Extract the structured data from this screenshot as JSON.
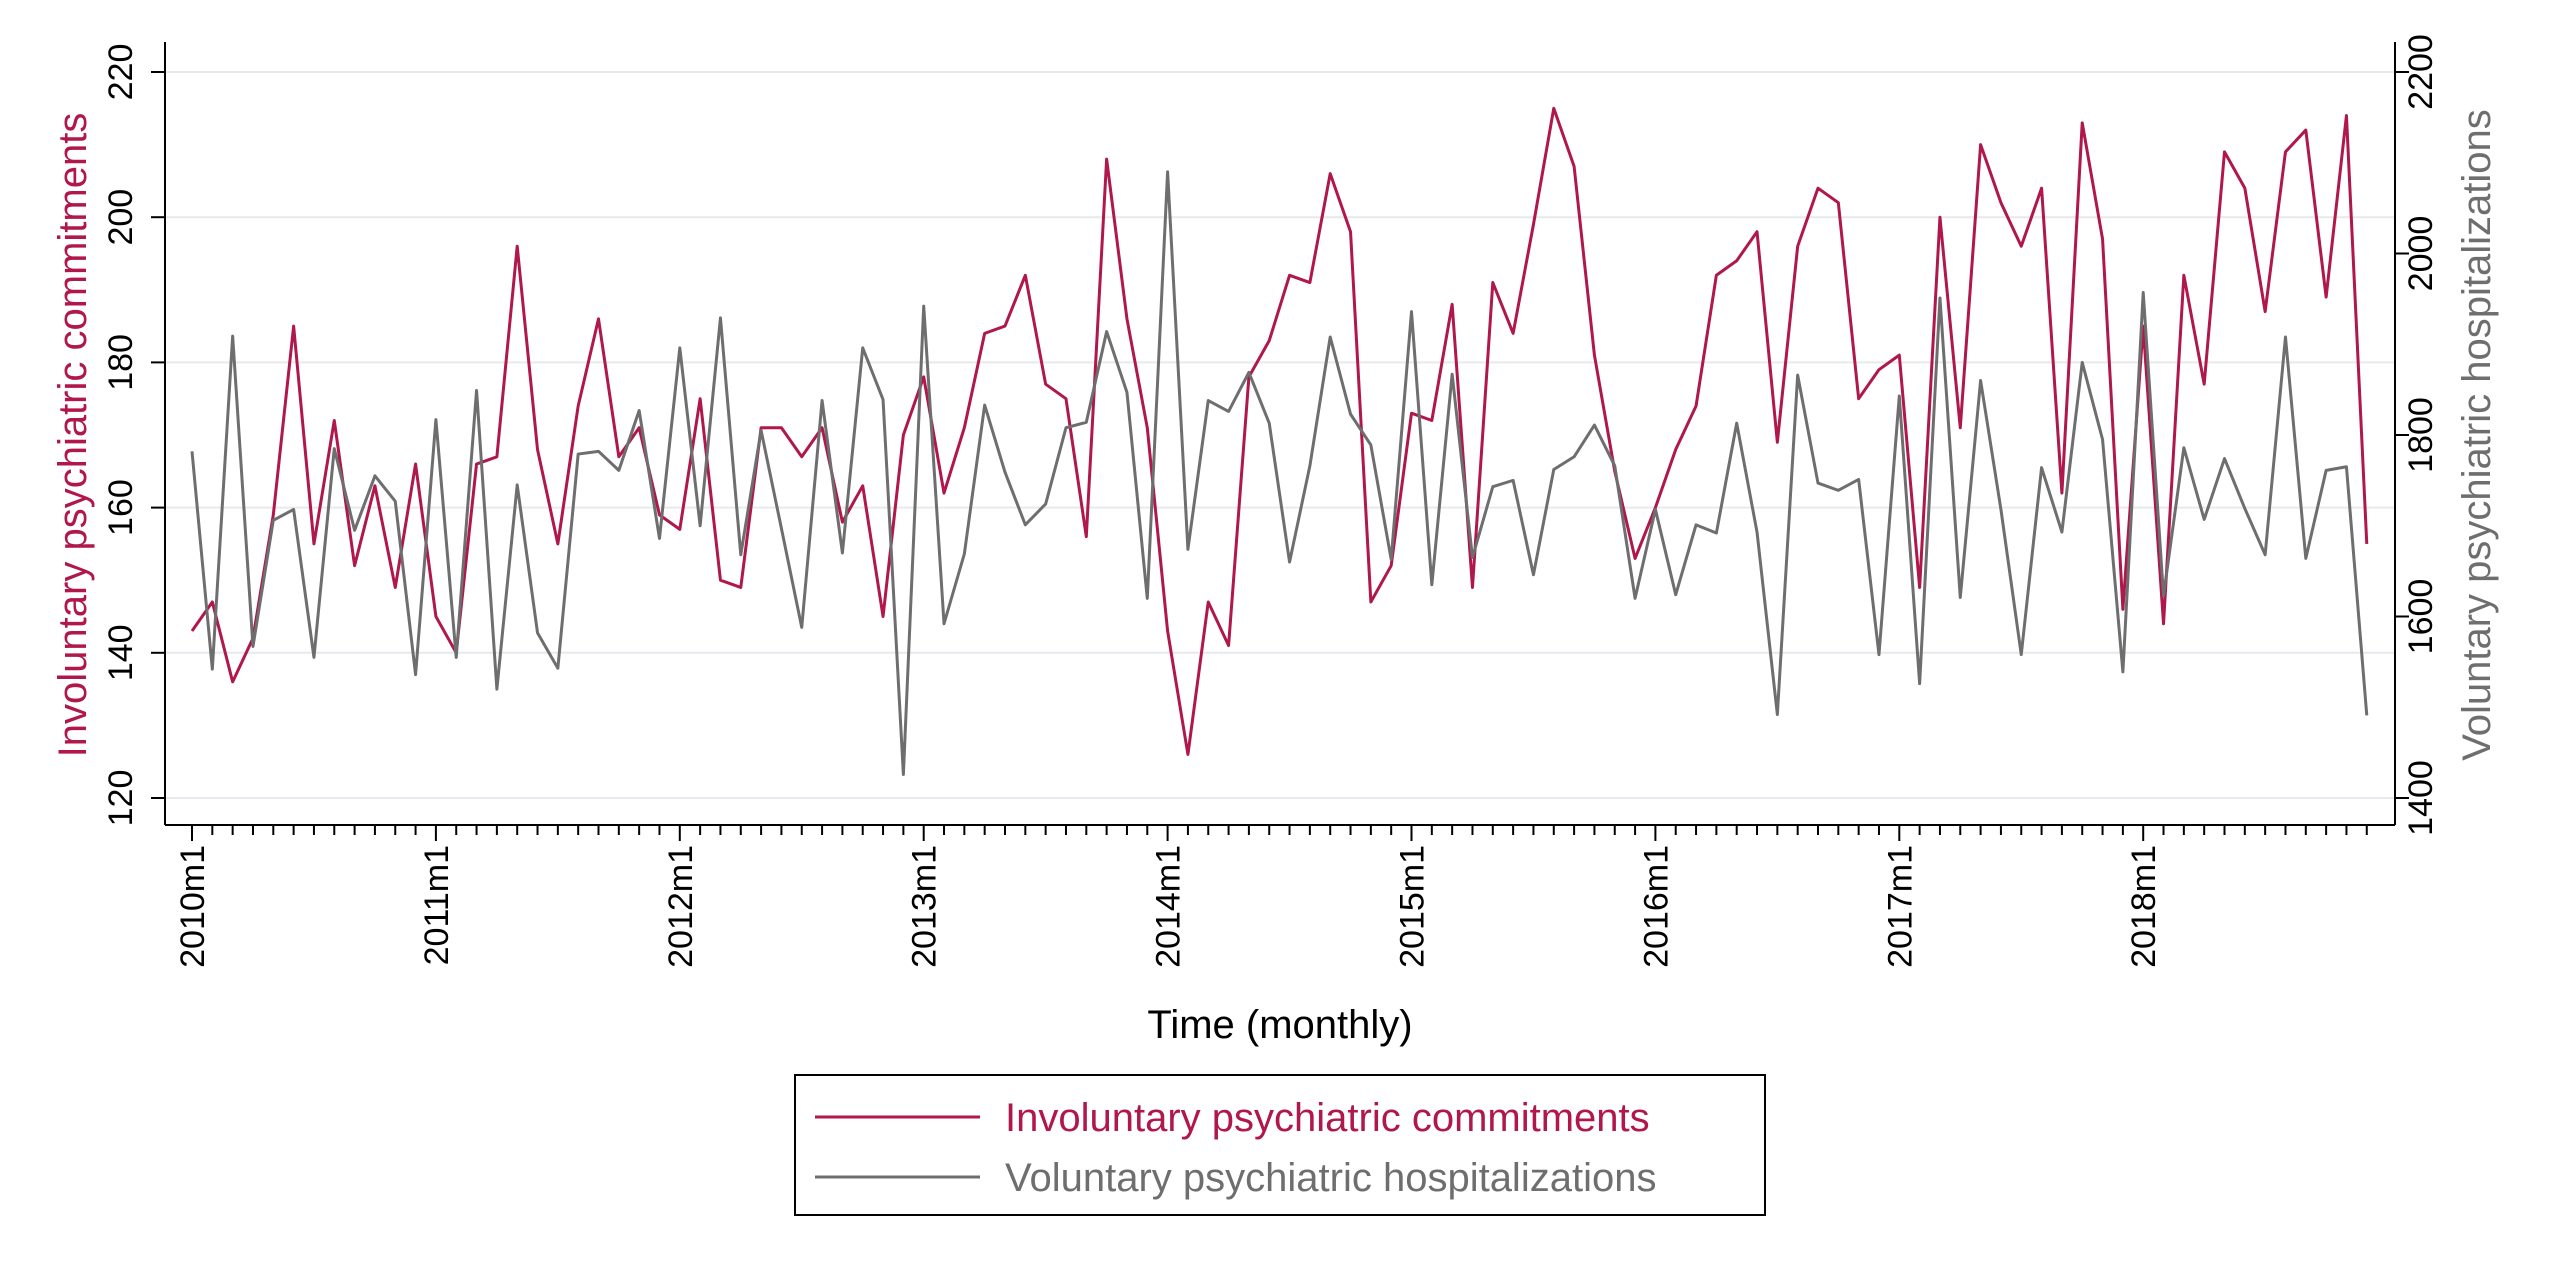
{
  "chart_data": {
    "type": "line",
    "xlabel": "Time (monthly)",
    "x_tick_labels": [
      "2010m1",
      "2011m1",
      "2012m1",
      "2013m1",
      "2014m1",
      "2015m1",
      "2016m1",
      "2017m1",
      "2018m1"
    ],
    "x_range": [
      "2010m1",
      "2018m12"
    ],
    "grid": true,
    "legend_position": "bottom",
    "left_axis": {
      "label": "Involuntary psychiatric commitments",
      "ylim": [
        120,
        220
      ],
      "ticks": [
        120,
        140,
        160,
        180,
        200,
        220
      ],
      "color": "#b0174a"
    },
    "right_axis": {
      "label": "Voluntary psychiatric hospitalizations",
      "ylim": [
        1400,
        2200
      ],
      "ticks": [
        1400,
        1600,
        1800,
        2000,
        2200
      ],
      "color": "#6e6e6e"
    },
    "series": [
      {
        "name": "Involuntary psychiatric commitments",
        "axis": "left",
        "color": "#b0174a",
        "values": [
          143,
          147,
          136,
          142,
          159,
          185,
          155,
          172,
          152,
          163,
          149,
          166,
          145,
          140,
          166,
          167,
          196,
          168,
          155,
          174,
          186,
          167,
          171,
          159,
          157,
          175,
          150,
          149,
          171,
          171,
          167,
          171,
          158,
          163,
          145,
          170,
          178,
          162,
          171,
          184,
          185,
          192,
          177,
          175,
          156,
          208,
          186,
          171,
          143,
          126,
          147,
          141,
          178,
          183,
          192,
          191,
          206,
          198,
          147,
          152,
          173,
          172,
          188,
          149,
          191,
          184,
          199,
          215,
          207,
          181,
          165,
          153,
          160,
          168,
          174,
          192,
          194,
          198,
          169,
          196,
          204,
          202,
          175,
          179,
          181,
          149,
          200,
          171,
          210,
          202,
          196,
          204,
          162,
          213,
          197,
          146,
          185,
          144,
          192,
          177,
          209,
          204,
          187,
          209,
          212,
          189,
          214,
          155
        ]
      },
      {
        "name": "Voluntary psychiatric hospitalizations",
        "axis": "right",
        "color": "#6e6e6e",
        "values": [
          1782,
          1542,
          1909,
          1567,
          1706,
          1718,
          1555,
          1785,
          1695,
          1755,
          1727,
          1536,
          1817,
          1555,
          1849,
          1520,
          1745,
          1582,
          1543,
          1779,
          1782,
          1761,
          1827,
          1686,
          1896,
          1700,
          1929,
          1668,
          1805,
          1697,
          1588,
          1838,
          1670,
          1896,
          1839,
          1426,
          1942,
          1592,
          1669,
          1833,
          1759,
          1701,
          1724,
          1808,
          1814,
          1914,
          1847,
          1620,
          2090,
          1674,
          1838,
          1826,
          1869,
          1813,
          1660,
          1766,
          1908,
          1823,
          1789,
          1663,
          1936,
          1635,
          1867,
          1665,
          1743,
          1750,
          1646,
          1762,
          1776,
          1811,
          1766,
          1620,
          1718,
          1624,
          1701,
          1692,
          1813,
          1693,
          1492,
          1866,
          1747,
          1739,
          1751,
          1558,
          1843,
          1526,
          1951,
          1621,
          1860,
          1718,
          1558,
          1764,
          1693,
          1880,
          1795,
          1539,
          1957,
          1623,
          1786,
          1707,
          1774,
          1719,
          1668,
          1908,
          1664,
          1761,
          1765,
          1491
        ]
      }
    ]
  }
}
